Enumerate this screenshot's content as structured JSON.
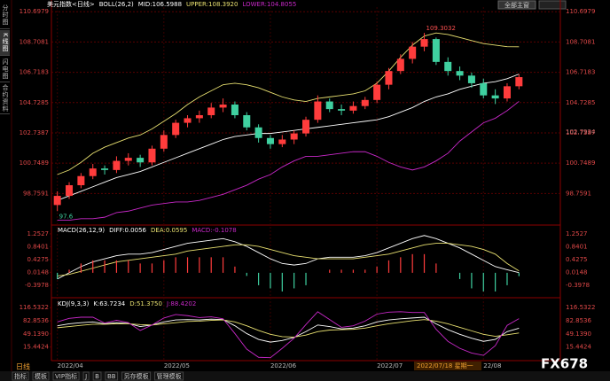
{
  "sidebar": [
    "分时图",
    "K线图",
    "闪电图",
    "合约资料"
  ],
  "toolbar": {
    "button": "全部主窗"
  },
  "cursor_label": "2022/07/18 星期一",
  "period": "日线",
  "tabs": [
    "指标",
    "模板",
    "VIP指标",
    "J",
    "B",
    "BB",
    "另存模板",
    "管理模板"
  ],
  "watermark": "FX678",
  "chart_data": [
    {
      "type": "candlestick",
      "title": "美元指数<日线>",
      "indicator": "BOLL(26,2)",
      "categories": [
        "2022/04",
        null,
        null,
        null,
        null,
        null,
        null,
        null,
        null,
        "2022/05",
        null,
        null,
        null,
        null,
        null,
        null,
        null,
        null,
        "2022/06",
        null,
        null,
        null,
        null,
        null,
        null,
        null,
        null,
        "2022/07",
        null,
        null,
        null,
        null,
        null,
        null,
        null,
        null,
        "22/08",
        null,
        null,
        null
      ],
      "candles": [
        [
          98.0,
          98.9,
          97.6,
          98.6
        ],
        [
          98.6,
          99.5,
          98.4,
          99.3
        ],
        [
          99.3,
          100.1,
          99.1,
          99.9
        ],
        [
          99.9,
          100.7,
          99.7,
          100.4
        ],
        [
          100.4,
          100.6,
          100.0,
          100.3
        ],
        [
          100.3,
          101.2,
          100.1,
          100.9
        ],
        [
          100.9,
          101.4,
          100.6,
          101.1
        ],
        [
          101.1,
          101.3,
          100.5,
          100.8
        ],
        [
          100.8,
          101.9,
          100.6,
          101.7
        ],
        [
          101.7,
          102.9,
          101.5,
          102.6
        ],
        [
          102.6,
          103.6,
          102.4,
          103.4
        ],
        [
          103.4,
          103.9,
          103.1,
          103.7
        ],
        [
          103.7,
          104.2,
          103.4,
          103.9
        ],
        [
          103.9,
          104.7,
          103.7,
          104.4
        ],
        [
          104.4,
          105.0,
          104.1,
          104.6
        ],
        [
          104.6,
          104.8,
          103.7,
          103.9
        ],
        [
          103.9,
          104.1,
          102.9,
          103.1
        ],
        [
          103.1,
          103.3,
          102.1,
          102.4
        ],
        [
          102.4,
          102.6,
          101.7,
          102.0
        ],
        [
          102.0,
          102.6,
          101.8,
          102.3
        ],
        [
          102.3,
          102.9,
          102.0,
          102.7
        ],
        [
          102.7,
          103.8,
          102.5,
          103.6
        ],
        [
          103.6,
          105.2,
          103.4,
          104.8
        ],
        [
          104.8,
          105.0,
          104.1,
          104.3
        ],
        [
          104.3,
          104.6,
          103.9,
          104.2
        ],
        [
          104.2,
          104.8,
          104.0,
          104.5
        ],
        [
          104.5,
          105.1,
          104.3,
          104.9
        ],
        [
          104.9,
          106.1,
          104.7,
          105.9
        ],
        [
          105.9,
          107.0,
          105.6,
          106.8
        ],
        [
          106.8,
          107.9,
          106.6,
          107.6
        ],
        [
          107.6,
          108.7,
          107.3,
          108.4
        ],
        [
          108.4,
          109.3032,
          108.1,
          108.9
        ],
        [
          108.9,
          109.0,
          107.2,
          107.4
        ],
        [
          107.4,
          107.7,
          106.5,
          106.8
        ],
        [
          106.8,
          107.1,
          106.2,
          106.5
        ],
        [
          106.5,
          106.7,
          105.7,
          106.0
        ],
        [
          106.0,
          106.3,
          105.0,
          105.2
        ],
        [
          105.2,
          105.6,
          104.6343,
          105.0
        ],
        [
          105.0,
          106.0,
          104.8,
          105.8
        ],
        [
          105.8,
          106.6,
          105.6,
          106.4
        ]
      ],
      "up_color": "#ff3c3c",
      "down_color": "#3fd0a0",
      "series": [
        {
          "name": "MID:106.5988",
          "color": "#ffffff",
          "values": [
            98.3,
            98.6,
            98.9,
            99.2,
            99.5,
            99.8,
            100.0,
            100.2,
            100.5,
            100.8,
            101.1,
            101.4,
            101.7,
            102.0,
            102.3,
            102.5,
            102.6,
            102.7,
            102.7,
            102.8,
            102.9,
            103.0,
            103.1,
            103.2,
            103.3,
            103.4,
            103.5,
            103.6,
            103.8,
            104.1,
            104.4,
            104.8,
            105.1,
            105.3,
            105.6,
            105.8,
            106.0,
            106.1,
            106.3,
            106.5988
          ]
        },
        {
          "name": "UPPER:108.3920",
          "color": "#e8e070",
          "values": [
            100.0,
            100.3,
            100.8,
            101.4,
            101.8,
            102.1,
            102.4,
            102.6,
            103.0,
            103.5,
            104.0,
            104.6,
            105.1,
            105.5,
            105.9,
            106.0,
            105.9,
            105.7,
            105.4,
            105.1,
            104.9,
            104.8,
            105.0,
            105.1,
            105.2,
            105.3,
            105.5,
            106.0,
            106.8,
            107.7,
            108.5,
            109.1,
            109.3,
            109.2,
            109.0,
            108.8,
            108.6,
            108.5,
            108.4,
            108.392
          ]
        },
        {
          "name": "LOWER:104.8055",
          "color": "#c828c8",
          "values": [
            97.0,
            97.0,
            97.1,
            97.1,
            97.2,
            97.5,
            97.6,
            97.8,
            98.0,
            98.1,
            98.2,
            98.2,
            98.3,
            98.5,
            98.7,
            99.0,
            99.3,
            99.7,
            100.0,
            100.5,
            100.9,
            101.2,
            101.2,
            101.3,
            101.4,
            101.5,
            101.5,
            101.2,
            100.8,
            100.5,
            100.3,
            100.5,
            100.9,
            101.4,
            102.2,
            102.8,
            103.4,
            103.7,
            104.2,
            104.8055
          ]
        }
      ],
      "price_marker": 102.7934,
      "ylim": [
        96.8,
        111.0
      ],
      "yticks": [
        110.6979,
        108.7081,
        106.7183,
        104.7285,
        102.7387,
        100.7489,
        98.7591
      ],
      "grid": true
    },
    {
      "type": "macd",
      "indicator": "MACD(26,12,9)",
      "series": [
        {
          "name": "DIFF:0.0056",
          "style": "line",
          "color": "#ffffff",
          "values": [
            -0.2,
            0.0,
            0.2,
            0.35,
            0.45,
            0.55,
            0.6,
            0.6,
            0.65,
            0.75,
            0.85,
            0.95,
            1.0,
            1.05,
            1.1,
            1.0,
            0.85,
            0.65,
            0.45,
            0.3,
            0.25,
            0.3,
            0.45,
            0.5,
            0.5,
            0.5,
            0.55,
            0.65,
            0.8,
            0.95,
            1.1,
            1.2,
            1.1,
            0.95,
            0.8,
            0.6,
            0.4,
            0.2,
            0.1,
            0.0056
          ]
        },
        {
          "name": "DEA:0.0595",
          "style": "line",
          "color": "#e8e070",
          "values": [
            -0.1,
            -0.05,
            0.05,
            0.15,
            0.25,
            0.35,
            0.4,
            0.45,
            0.5,
            0.55,
            0.6,
            0.7,
            0.75,
            0.8,
            0.85,
            0.9,
            0.9,
            0.85,
            0.75,
            0.65,
            0.55,
            0.5,
            0.45,
            0.45,
            0.45,
            0.45,
            0.5,
            0.55,
            0.6,
            0.7,
            0.8,
            0.9,
            0.95,
            0.95,
            0.9,
            0.85,
            0.75,
            0.6,
            0.3,
            0.0595
          ]
        },
        {
          "name": "MACD:-0.1078",
          "style": "bar",
          "color": "#c828c8",
          "up_color": "#ff3c3c",
          "down_color": "#3fd0a0",
          "values": [
            -0.2,
            0.1,
            0.3,
            0.4,
            0.4,
            0.4,
            0.4,
            0.3,
            0.3,
            0.4,
            0.5,
            0.5,
            0.5,
            0.5,
            0.5,
            0.2,
            -0.1,
            -0.4,
            -0.5,
            -0.6,
            -0.5,
            -0.4,
            0,
            0.1,
            0.1,
            0.1,
            0.1,
            0.2,
            0.4,
            0.5,
            0.6,
            0.6,
            0.3,
            0,
            -0.2,
            -0.5,
            -0.6,
            -0.6,
            -0.4,
            -0.1078
          ]
        }
      ],
      "ylim": [
        -0.63,
        1.45
      ],
      "yticks": [
        1.2527,
        0.8401,
        0.4275,
        0.0148,
        -0.3978
      ],
      "grid": false
    },
    {
      "type": "line",
      "indicator": "KDJ(9,3,3)",
      "series": [
        {
          "name": "K:63.7234",
          "color": "#ffffff",
          "values": [
            70,
            75,
            78,
            80,
            75,
            78,
            76,
            68,
            72,
            80,
            85,
            86,
            85,
            87,
            86,
            70,
            50,
            35,
            28,
            32,
            40,
            55,
            72,
            68,
            62,
            64,
            70,
            80,
            85,
            88,
            90,
            92,
            75,
            60,
            48,
            38,
            30,
            35,
            55,
            63.7234
          ]
        },
        {
          "name": "D:51.3750",
          "color": "#e8e070",
          "values": [
            65,
            68,
            71,
            74,
            74,
            75,
            75,
            73,
            72,
            75,
            78,
            81,
            82,
            84,
            85,
            80,
            70,
            58,
            48,
            42,
            41,
            46,
            55,
            59,
            60,
            61,
            64,
            70,
            75,
            79,
            83,
            86,
            82,
            75,
            66,
            57,
            48,
            43,
            47,
            51.375
          ]
        },
        {
          "name": "J:88.4202",
          "color": "#c828c8",
          "values": [
            80,
            89,
            92,
            92,
            77,
            84,
            78,
            58,
            72,
            90,
            99,
            96,
            91,
            93,
            88,
            50,
            10,
            -11,
            -12,
            12,
            38,
            73,
            106,
            86,
            66,
            70,
            82,
            100,
            105,
            106,
            104,
            104,
            61,
            30,
            12,
            0,
            -6,
            19,
            71,
            88.4202
          ]
        }
      ],
      "ylim": [
        -15,
        133
      ],
      "yticks": [
        {
          "value": 116.5322,
          "label": "116.5322"
        },
        {
          "value": 82.8536,
          "label": "82.8536"
        },
        {
          "value": 49.139,
          "label": "49.1390"
        },
        {
          "value": 15.4424,
          "label": "15.4424"
        }
      ],
      "grid": false
    }
  ]
}
